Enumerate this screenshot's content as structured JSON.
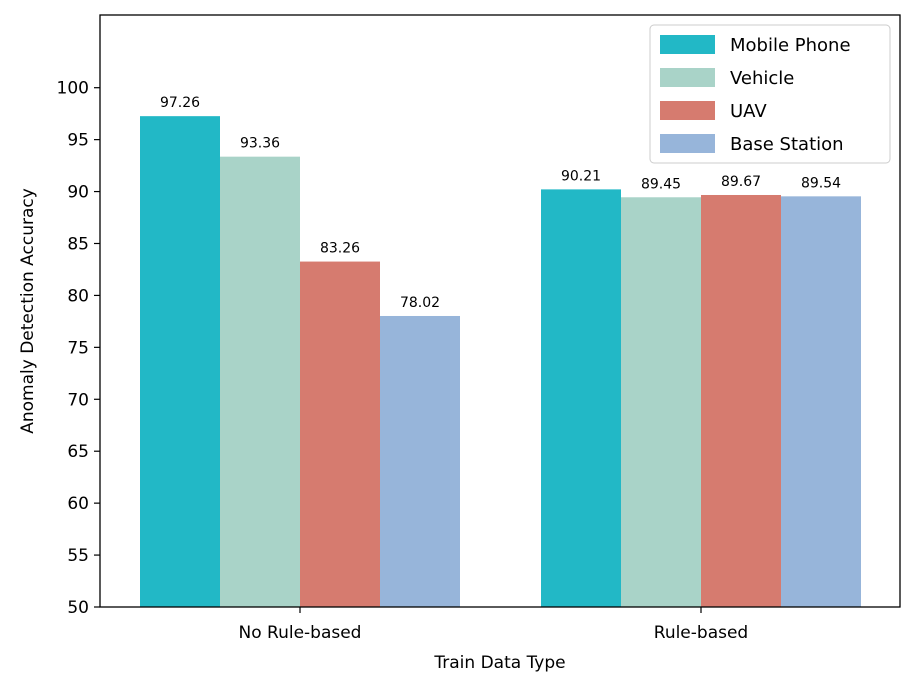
{
  "chart_data": {
    "type": "bar",
    "categories": [
      "No Rule-based",
      "Rule-based"
    ],
    "series": [
      {
        "name": "Mobile Phone",
        "color": "#22b8c6",
        "values": [
          97.26,
          90.21
        ],
        "labels": [
          "97.26",
          "90.21"
        ]
      },
      {
        "name": "Vehicle",
        "color": "#a9d3c8",
        "values": [
          93.36,
          89.45
        ],
        "labels": [
          "93.36",
          "89.45"
        ]
      },
      {
        "name": "UAV",
        "color": "#d67b6f",
        "values": [
          83.26,
          89.67
        ],
        "labels": [
          "83.26",
          "89.67"
        ]
      },
      {
        "name": "Base Station",
        "color": "#97b5da",
        "values": [
          78.02,
          89.54
        ],
        "labels": [
          "78.02",
          "89.54"
        ]
      }
    ],
    "xlabel": "Train Data Type",
    "ylabel": "Anomaly Detection Accuracy",
    "ylim": [
      50,
      107
    ],
    "yticks": [
      50,
      55,
      60,
      65,
      70,
      75,
      80,
      85,
      90,
      95,
      100
    ],
    "grid": false,
    "legend_position": "top-right"
  }
}
